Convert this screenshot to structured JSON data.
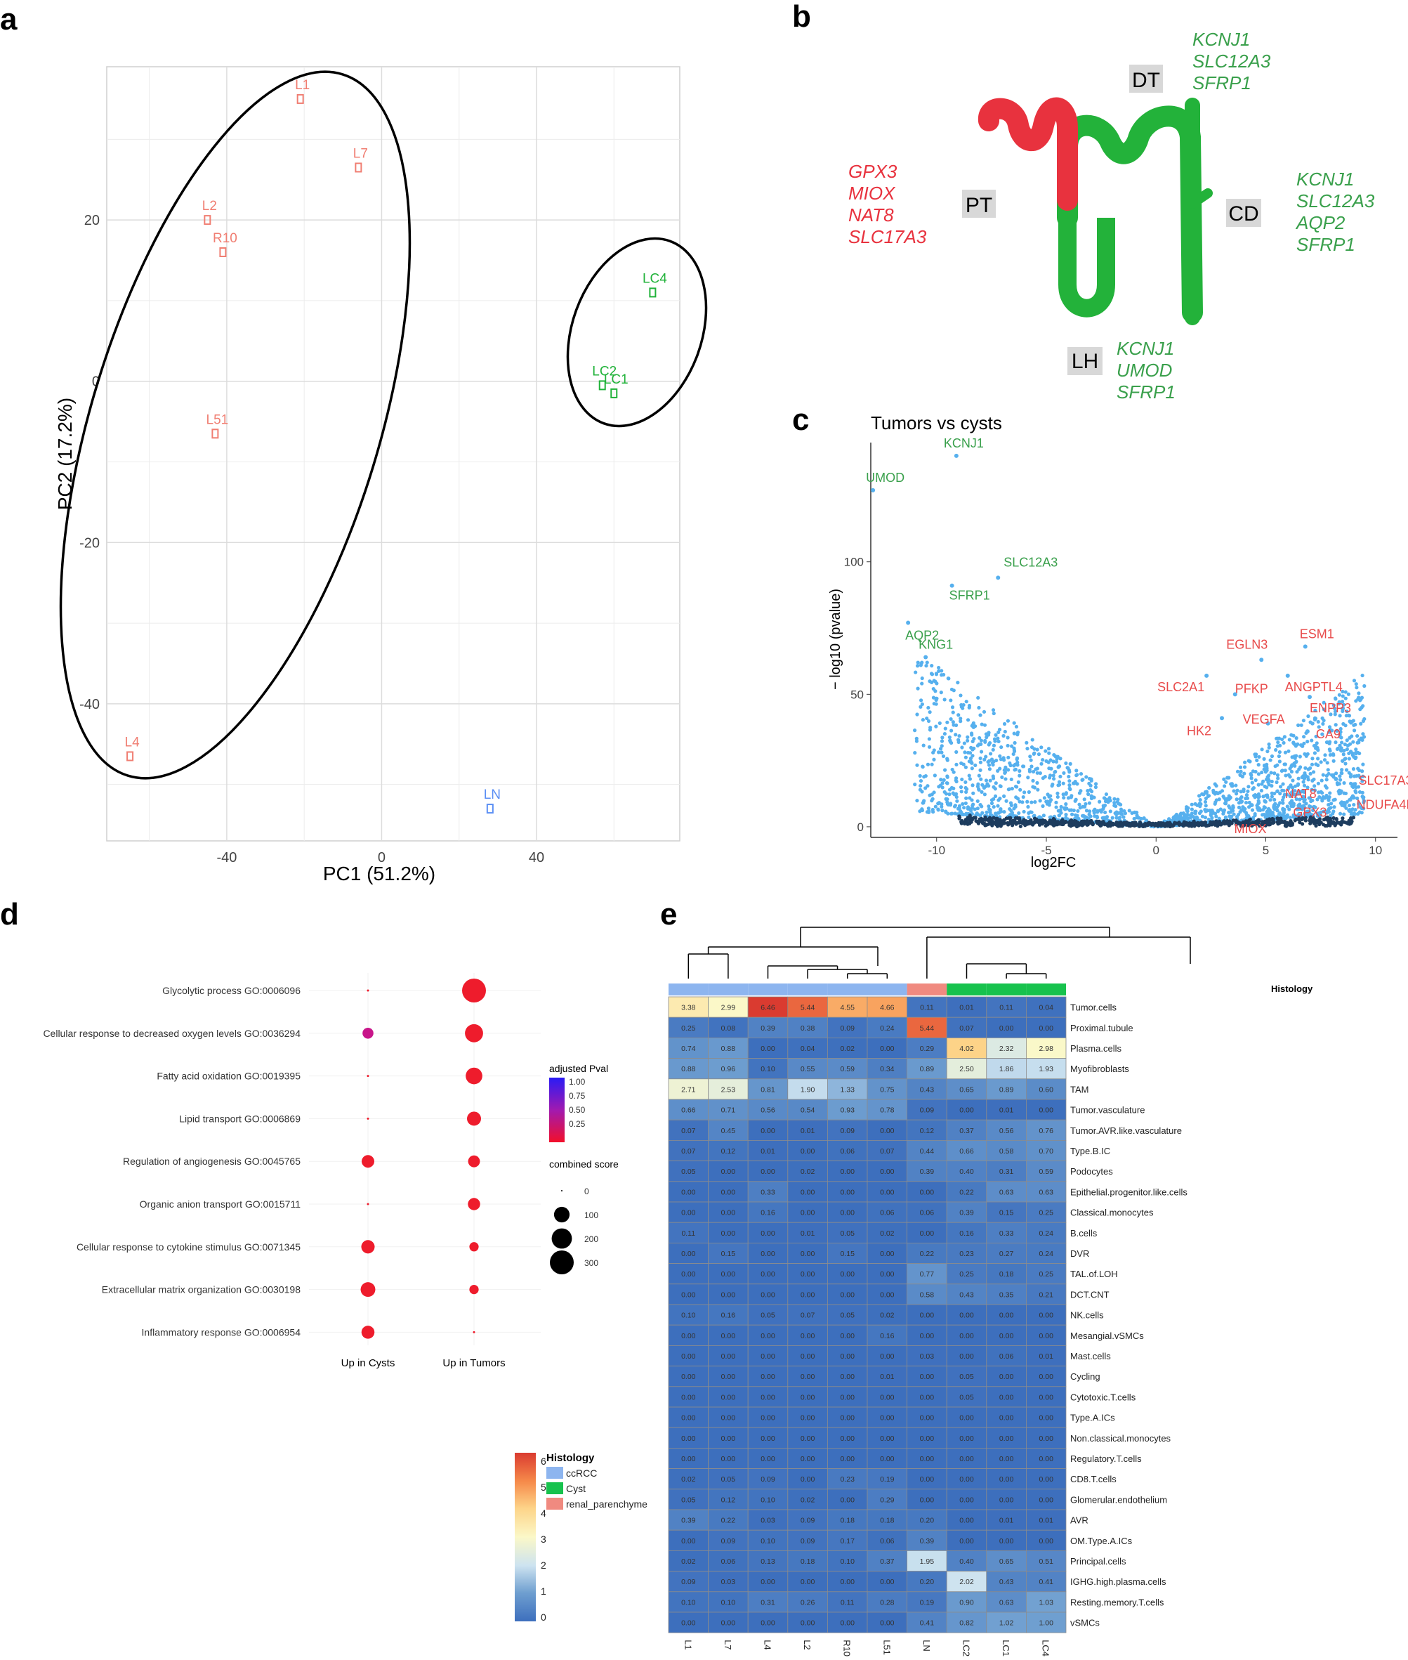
{
  "panels": {
    "a": "a",
    "b": "b",
    "c": "c",
    "d": "d",
    "e": "e"
  },
  "colors": {
    "tumor": "#f07e72",
    "cyst": "#20b239",
    "normal": "#5b8ff4",
    "red_gene": "#e8323e",
    "green_gene": "#3aa04c",
    "dot": "#56b0ee",
    "grid": "#ececec"
  },
  "chart_data": [
    {
      "id": "pca",
      "type": "scatter",
      "xlabel": "PC1 (51.2%)",
      "ylabel": "PC2 (17.2%)",
      "xlim": [
        -71,
        77
      ],
      "ylim": [
        -57,
        39
      ],
      "xticks": [
        -40,
        0,
        40
      ],
      "yticks": [
        -40,
        -20,
        0,
        20
      ],
      "points": [
        {
          "label": "L1",
          "x": -21,
          "y": 35,
          "group": "tumor"
        },
        {
          "label": "L7",
          "x": -6,
          "y": 26.5,
          "group": "tumor"
        },
        {
          "label": "L2",
          "x": -45,
          "y": 20,
          "group": "tumor"
        },
        {
          "label": "R10",
          "x": -41,
          "y": 16,
          "group": "tumor"
        },
        {
          "label": "L51",
          "x": -43,
          "y": -6.5,
          "group": "tumor"
        },
        {
          "label": "L4",
          "x": -65,
          "y": -46.5,
          "group": "tumor"
        },
        {
          "label": "LC4",
          "x": 70,
          "y": 11,
          "group": "cyst"
        },
        {
          "label": "LC2",
          "x": 57,
          "y": -0.5,
          "group": "cyst"
        },
        {
          "label": "LC1",
          "x": 60,
          "y": -1.5,
          "group": "cyst"
        },
        {
          "label": "LN",
          "x": 28,
          "y": -53,
          "group": "normal"
        }
      ]
    },
    {
      "id": "nephron",
      "type": "diagram",
      "segments": [
        {
          "name": "PT",
          "genes": [
            "GPX3",
            "MIOX",
            "NAT8",
            "SLC17A3"
          ],
          "color": "red"
        },
        {
          "name": "DT",
          "genes": [
            "KCNJ1",
            "SLC12A3",
            "SFRP1"
          ],
          "color": "green"
        },
        {
          "name": "CD",
          "genes": [
            "KCNJ1",
            "SLC12A3",
            "AQP2",
            "SFRP1"
          ],
          "color": "green"
        },
        {
          "name": "LH",
          "genes": [
            "KCNJ1",
            "UMOD",
            "SFRP1"
          ],
          "color": "green"
        }
      ]
    },
    {
      "id": "volcano",
      "type": "scatter",
      "title": "Tumors vs cysts",
      "xlabel": "log2FC",
      "ylabel": "− log10 (pvalue)",
      "xlim": [
        -13,
        11
      ],
      "ylim": [
        -4,
        145
      ],
      "xticks": [
        -10,
        -5,
        0,
        5,
        10
      ],
      "yticks": [
        0,
        50,
        100
      ],
      "labeled": [
        {
          "gene": "KCNJ1",
          "x": -9.1,
          "y": 140,
          "color": "green"
        },
        {
          "gene": "UMOD",
          "x": -12.9,
          "y": 127,
          "color": "green"
        },
        {
          "gene": "SLC12A3",
          "x": -7.2,
          "y": 94,
          "color": "green"
        },
        {
          "gene": "SFRP1",
          "x": -9.3,
          "y": 91,
          "color": "green"
        },
        {
          "gene": "AQP2",
          "x": -11.3,
          "y": 77,
          "color": "green"
        },
        {
          "gene": "KNG1",
          "x": -10.5,
          "y": 64,
          "color": "green"
        },
        {
          "gene": "ESM1",
          "x": 6.8,
          "y": 68,
          "color": "red"
        },
        {
          "gene": "EGLN3",
          "x": 4.8,
          "y": 63,
          "color": "red"
        },
        {
          "gene": "SLC2A1",
          "x": 2.3,
          "y": 57,
          "color": "red"
        },
        {
          "gene": "ANGPTL4",
          "x": 6.0,
          "y": 57,
          "color": "red"
        },
        {
          "gene": "PFKP",
          "x": 3.6,
          "y": 50,
          "color": "red"
        },
        {
          "gene": "ENPP3",
          "x": 7.0,
          "y": 49,
          "color": "red"
        },
        {
          "gene": "HK2",
          "x": 3.0,
          "y": 41,
          "color": "red"
        },
        {
          "gene": "VEGFA",
          "x": 5.1,
          "y": 39,
          "color": "red"
        },
        {
          "gene": "CA9",
          "x": 6.9,
          "y": 36,
          "color": "red"
        },
        {
          "gene": "SLC17A3",
          "x": 8.2,
          "y": 18,
          "color": "red"
        },
        {
          "gene": "NAT8",
          "x": 6.2,
          "y": 13,
          "color": "red"
        },
        {
          "gene": "NDUFA4L2",
          "x": 9.0,
          "y": 11,
          "color": "red"
        },
        {
          "gene": "GPX3",
          "x": 6.5,
          "y": 8,
          "color": "red"
        },
        {
          "gene": "MIOX",
          "x": 4.2,
          "y": 4,
          "color": "red"
        }
      ]
    },
    {
      "id": "enrichment",
      "type": "scatter",
      "columns": [
        "Up in Cysts",
        "Up in Tumors"
      ],
      "terms": [
        "Glycolytic process GO:0006096",
        "Cellular response to decreased oxygen levels GO:0036294",
        "Fatty acid oxidation GO:0019395",
        "Lipid transport GO:0006869",
        "Regulation of angiogenesis GO:0045765",
        "Organic anion transport GO:0015711",
        "Cellular response to cytokine stimulus GO:0071345",
        "Extracellular matrix organization GO:0030198",
        "Inflammatory response GO:0006954"
      ],
      "cyst_scores": [
        2,
        35,
        2,
        2,
        55,
        2,
        65,
        85,
        60
      ],
      "tumor_scores": [
        300,
        150,
        120,
        75,
        45,
        50,
        20,
        20,
        2
      ],
      "cyst_padj": [
        0.1,
        0.35,
        0.1,
        0.1,
        0.05,
        0.1,
        0.05,
        0.05,
        0.05
      ],
      "tumor_padj": [
        0.05,
        0.1,
        0.05,
        0.05,
        0.05,
        0.05,
        0.05,
        0.05,
        0.05
      ],
      "legend_padj_title": "adjusted Pval",
      "legend_padj_ticks": [
        "1.00",
        "0.75",
        "0.50",
        "0.25"
      ],
      "legend_size_title": "combined score",
      "legend_size_ticks": [
        0,
        100,
        200,
        300
      ],
      "legend_size_labels": [
        "0",
        "100",
        "200",
        "300"
      ]
    },
    {
      "id": "heatmap",
      "type": "heatmap",
      "columns": [
        "L1",
        "L7",
        "L4",
        "L2",
        "R10",
        "L51",
        "LN",
        "LC2",
        "LC1",
        "LC4"
      ],
      "histology": [
        "ccRCC",
        "ccRCC",
        "ccRCC",
        "ccRCC",
        "ccRCC",
        "ccRCC",
        "renal_parenchyme",
        "Cyst",
        "Cyst",
        "Cyst"
      ],
      "histology_title": "Histology",
      "histology_legend": [
        {
          "name": "ccRCC",
          "color": "#8db5ef"
        },
        {
          "name": "Cyst",
          "color": "#17c24d"
        },
        {
          "name": "renal_parenchyme",
          "color": "#f08a80"
        }
      ],
      "scale_ticks": [
        0,
        1,
        2,
        3,
        4,
        5,
        6
      ],
      "scale_labels": [
        "0",
        "1",
        "2",
        "3",
        "4",
        "5",
        "6"
      ],
      "rows": [
        "Tumor.cells",
        "Proximal.tubule",
        "Plasma.cells",
        "Myofibroblasts",
        "TAM",
        "Tumor.vasculature",
        "Tumor.AVR.like.vasculature",
        "Type.B.IC",
        "Podocytes",
        "Epithelial.progenitor.like.cells",
        "Classical.monocytes",
        "B.cells",
        "DVR",
        "TAL.of.LOH",
        "DCT.CNT",
        "NK.cells",
        "Mesangial.vSMCs",
        "Mast.cells",
        "Cycling",
        "Cytotoxic.T.cells",
        "Type.A.ICs",
        "Non.classical.monocytes",
        "Regulatory.T.cells",
        "CD8.T.cells",
        "Glomerular.endothelium",
        "AVR",
        "OM.Type.A.ICs",
        "Principal.cells",
        "IGHG.high.plasma.cells",
        "Resting.memory.T.cells",
        "vSMCs"
      ],
      "values": [
        [
          "3.38",
          "2.99",
          "6.46",
          "5.44",
          "4.55",
          "4.66",
          "0.11",
          "0.01",
          "0.11",
          "0.04"
        ],
        [
          "0.25",
          "0.08",
          "0.39",
          "0.38",
          "0.09",
          "0.24",
          "5.44",
          "0.07",
          "0.00",
          "0.00"
        ],
        [
          "0.74",
          "0.88",
          "0.00",
          "0.04",
          "0.02",
          "0.00",
          "0.29",
          "4.02",
          "2.32",
          "2.98"
        ],
        [
          "0.88",
          "0.96",
          "0.10",
          "0.55",
          "0.59",
          "0.34",
          "0.89",
          "2.50",
          "1.86",
          "1.93"
        ],
        [
          "2.71",
          "2.53",
          "0.81",
          "1.90",
          "1.33",
          "0.75",
          "0.43",
          "0.65",
          "0.89",
          "0.60"
        ],
        [
          "0.66",
          "0.71",
          "0.56",
          "0.54",
          "0.93",
          "0.78",
          "0.09",
          "0.00",
          "0.01",
          "0.00"
        ],
        [
          "0.07",
          "0.45",
          "0.00",
          "0.01",
          "0.09",
          "0.00",
          "0.12",
          "0.37",
          "0.56",
          "0.76"
        ],
        [
          "0.07",
          "0.12",
          "0.01",
          "0.00",
          "0.06",
          "0.07",
          "0.44",
          "0.66",
          "0.58",
          "0.70"
        ],
        [
          "0.05",
          "0.00",
          "0.00",
          "0.02",
          "0.00",
          "0.00",
          "0.39",
          "0.40",
          "0.31",
          "0.59"
        ],
        [
          "0.00",
          "0.00",
          "0.33",
          "0.00",
          "0.00",
          "0.00",
          "0.00",
          "0.22",
          "0.63",
          "0.63"
        ],
        [
          "0.00",
          "0.00",
          "0.16",
          "0.00",
          "0.00",
          "0.06",
          "0.06",
          "0.39",
          "0.15",
          "0.25"
        ],
        [
          "0.11",
          "0.00",
          "0.00",
          "0.01",
          "0.05",
          "0.02",
          "0.00",
          "0.16",
          "0.33",
          "0.24"
        ],
        [
          "0.00",
          "0.15",
          "0.00",
          "0.00",
          "0.15",
          "0.00",
          "0.22",
          "0.23",
          "0.27",
          "0.24"
        ],
        [
          "0.00",
          "0.00",
          "0.00",
          "0.00",
          "0.00",
          "0.00",
          "0.77",
          "0.25",
          "0.18",
          "0.25"
        ],
        [
          "0.00",
          "0.00",
          "0.00",
          "0.00",
          "0.00",
          "0.00",
          "0.58",
          "0.43",
          "0.35",
          "0.21"
        ],
        [
          "0.10",
          "0.16",
          "0.05",
          "0.07",
          "0.05",
          "0.02",
          "0.00",
          "0.00",
          "0.00",
          "0.00"
        ],
        [
          "0.00",
          "0.00",
          "0.00",
          "0.00",
          "0.00",
          "0.16",
          "0.00",
          "0.00",
          "0.00",
          "0.00"
        ],
        [
          "0.00",
          "0.00",
          "0.00",
          "0.00",
          "0.00",
          "0.00",
          "0.03",
          "0.00",
          "0.06",
          "0.01"
        ],
        [
          "0.00",
          "0.00",
          "0.00",
          "0.00",
          "0.00",
          "0.01",
          "0.00",
          "0.05",
          "0.00",
          "0.00"
        ],
        [
          "0.00",
          "0.00",
          "0.00",
          "0.00",
          "0.00",
          "0.00",
          "0.00",
          "0.05",
          "0.00",
          "0.00"
        ],
        [
          "0.00",
          "0.00",
          "0.00",
          "0.00",
          "0.00",
          "0.00",
          "0.00",
          "0.00",
          "0.00",
          "0.00"
        ],
        [
          "0.00",
          "0.00",
          "0.00",
          "0.00",
          "0.00",
          "0.00",
          "0.00",
          "0.00",
          "0.00",
          "0.00"
        ],
        [
          "0.00",
          "0.00",
          "0.00",
          "0.00",
          "0.00",
          "0.00",
          "0.00",
          "0.00",
          "0.00",
          "0.00"
        ],
        [
          "0.02",
          "0.05",
          "0.09",
          "0.00",
          "0.23",
          "0.19",
          "0.00",
          "0.00",
          "0.00",
          "0.00"
        ],
        [
          "0.05",
          "0.12",
          "0.10",
          "0.02",
          "0.00",
          "0.29",
          "0.00",
          "0.00",
          "0.00",
          "0.00"
        ],
        [
          "0.39",
          "0.22",
          "0.03",
          "0.09",
          "0.18",
          "0.18",
          "0.20",
          "0.00",
          "0.01",
          "0.01"
        ],
        [
          "0.00",
          "0.09",
          "0.10",
          "0.09",
          "0.17",
          "0.06",
          "0.39",
          "0.00",
          "0.00",
          "0.00"
        ],
        [
          "0.02",
          "0.06",
          "0.13",
          "0.18",
          "0.10",
          "0.37",
          "1.95",
          "0.40",
          "0.65",
          "0.51"
        ],
        [
          "0.09",
          "0.03",
          "0.00",
          "0.00",
          "0.00",
          "0.00",
          "0.20",
          "2.02",
          "0.43",
          "0.41"
        ],
        [
          "0.10",
          "0.10",
          "0.31",
          "0.26",
          "0.11",
          "0.28",
          "0.19",
          "0.90",
          "0.63",
          "1.03"
        ],
        [
          "0.00",
          "0.00",
          "0.00",
          "0.00",
          "0.00",
          "0.00",
          "0.41",
          "0.82",
          "1.02",
          "1.00"
        ]
      ]
    }
  ]
}
